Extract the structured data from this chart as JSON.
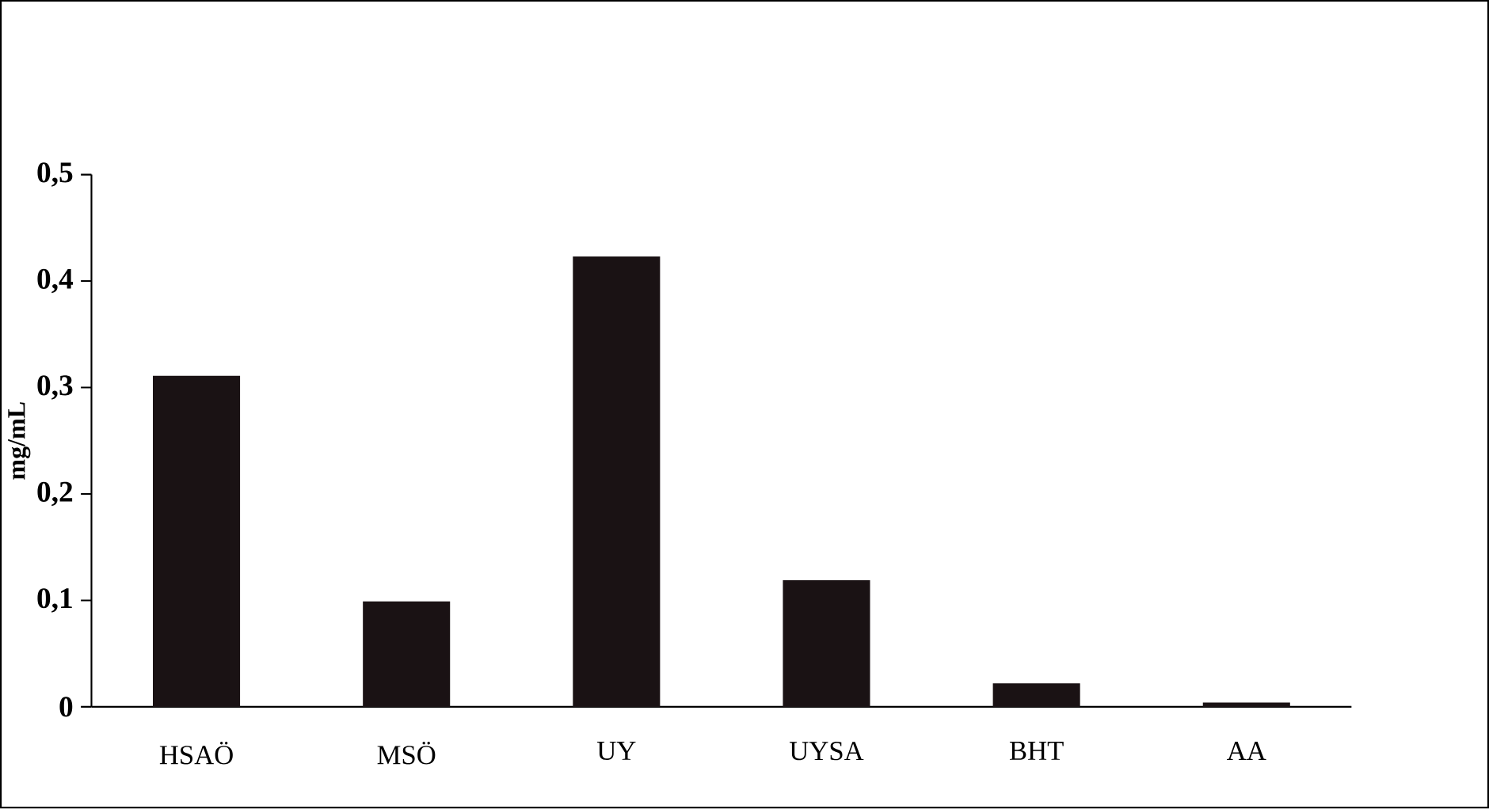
{
  "chart_data": {
    "type": "bar",
    "ylabel": "mg/mL",
    "categories": [
      "HSAÖ",
      "MSÖ",
      "UY",
      "UYSA",
      "BHT",
      "AA"
    ],
    "values": [
      0.311,
      0.099,
      0.423,
      0.119,
      0.022,
      0.004
    ],
    "color": "#1a1214",
    "ylim": [
      0,
      0.5
    ],
    "yticks": [
      {
        "value": 0,
        "label": "0"
      },
      {
        "value": 0.1,
        "label": "0,1"
      },
      {
        "value": 0.2,
        "label": "0,2"
      },
      {
        "value": 0.3,
        "label": "0,3"
      },
      {
        "value": 0.4,
        "label": "0,4"
      },
      {
        "value": 0.5,
        "label": "0,5"
      }
    ],
    "grid": false
  }
}
